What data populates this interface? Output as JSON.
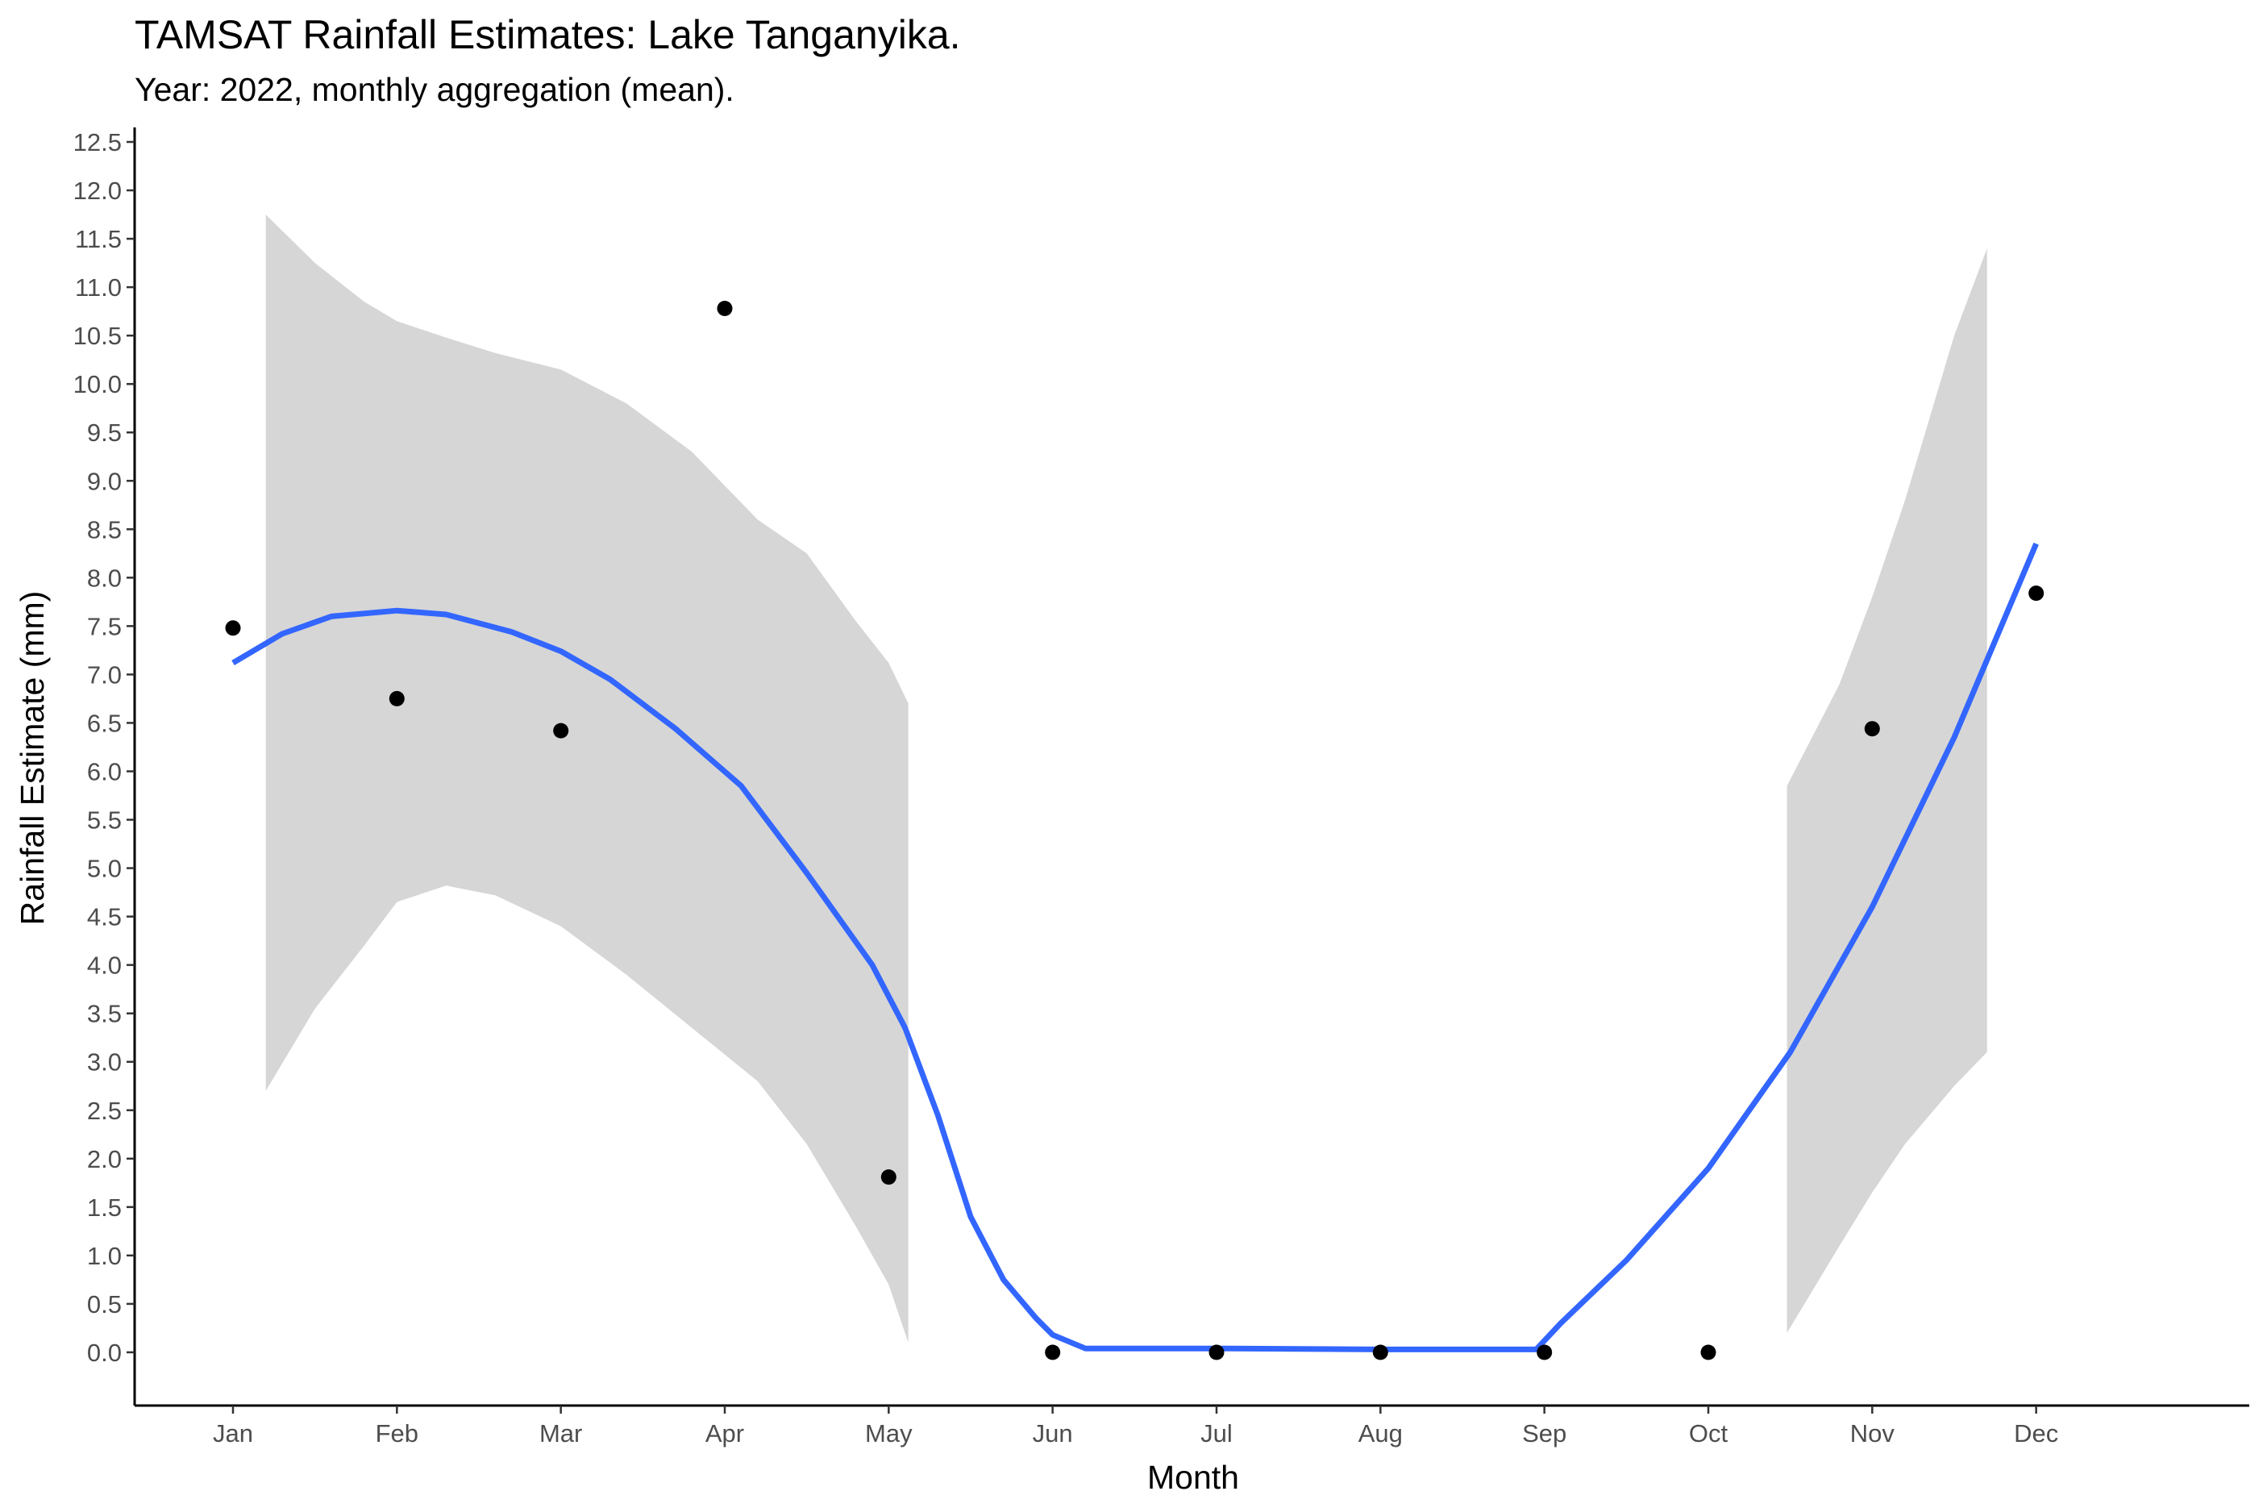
{
  "chart_data": {
    "type": "scatter",
    "title": "TAMSAT Rainfall Estimates: Lake Tanganyika.",
    "subtitle": "Year: 2022, monthly aggregation (mean).",
    "xlabel": "Month",
    "ylabel": "Rainfall Estimate (mm)",
    "categories": [
      "Jan",
      "Feb",
      "Mar",
      "Apr",
      "May",
      "Jun",
      "Jul",
      "Aug",
      "Sep",
      "Oct",
      "Nov",
      "Dec"
    ],
    "ylim": [
      -0.55,
      12.65
    ],
    "yticks": [
      "0.0",
      "0.5",
      "1.0",
      "1.5",
      "2.0",
      "2.5",
      "3.0",
      "3.5",
      "4.0",
      "4.5",
      "5.0",
      "5.5",
      "6.0",
      "6.5",
      "7.0",
      "7.5",
      "8.0",
      "8.5",
      "9.0",
      "9.5",
      "10.0",
      "10.5",
      "11.0",
      "11.5",
      "12.0",
      "12.5"
    ],
    "grid": false,
    "points": {
      "x": [
        1,
        2,
        3,
        4,
        5,
        6,
        7,
        8,
        9,
        10,
        11,
        12
      ],
      "y": [
        7.48,
        6.75,
        6.42,
        10.78,
        1.81,
        0.0,
        0.0,
        0.0,
        0.0,
        0.0,
        6.44,
        7.84
      ],
      "color": "#000000"
    },
    "smooth_line": {
      "color": "#3366FF",
      "x": [
        1.0,
        1.3,
        1.6,
        2.0,
        2.3,
        2.7,
        3.0,
        3.3,
        3.7,
        4.1,
        4.5,
        4.9,
        5.1,
        5.3,
        5.5,
        5.7,
        5.9,
        6.0,
        6.2,
        6.45,
        7.0,
        8.0,
        8.95,
        9.1,
        9.5,
        10.0,
        10.5,
        11.0,
        11.5,
        12.0
      ],
      "y": [
        7.12,
        7.42,
        7.6,
        7.66,
        7.62,
        7.44,
        7.24,
        6.95,
        6.44,
        5.85,
        4.95,
        4.0,
        3.35,
        2.45,
        1.4,
        0.75,
        0.35,
        0.18,
        0.04,
        0.04,
        0.04,
        0.03,
        0.03,
        0.3,
        0.95,
        1.9,
        3.1,
        4.6,
        6.35,
        8.35
      ]
    },
    "confidence_bands": [
      {
        "color": "#D6D6D6",
        "x": [
          1.2,
          1.5,
          1.8,
          2.0,
          2.3,
          2.6,
          3.0,
          3.4,
          3.8,
          4.2,
          4.5,
          4.8,
          5.0,
          5.12
        ],
        "upper": [
          11.75,
          11.25,
          10.85,
          10.65,
          10.48,
          10.32,
          10.15,
          9.8,
          9.3,
          8.6,
          8.25,
          7.55,
          7.12,
          6.7
        ],
        "lower": [
          2.7,
          3.55,
          4.2,
          4.65,
          4.82,
          4.72,
          4.4,
          3.9,
          3.35,
          2.8,
          2.15,
          1.3,
          0.7,
          0.1
        ]
      },
      {
        "color": "#D6D6D6",
        "x": [
          10.48,
          10.8,
          11.0,
          11.2,
          11.5,
          11.7
        ],
        "upper": [
          5.85,
          6.9,
          7.8,
          8.8,
          10.5,
          11.4
        ],
        "lower": [
          0.2,
          1.1,
          1.65,
          2.15,
          2.75,
          3.1
        ]
      }
    ]
  }
}
